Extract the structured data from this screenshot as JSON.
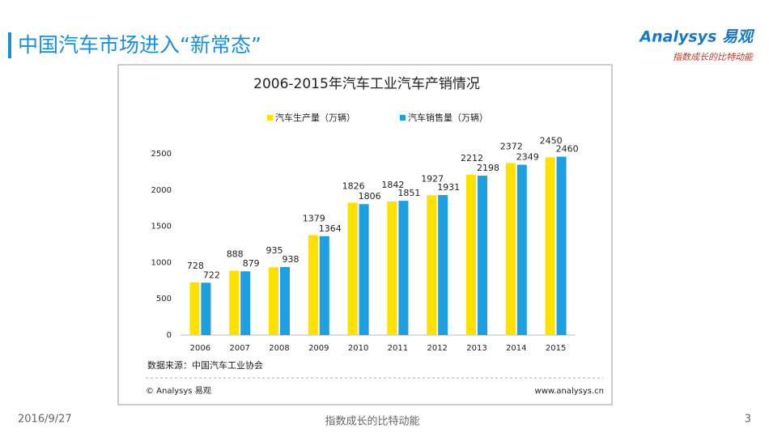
{
  "header": {
    "title": "中国汽车市场进入“新常态”",
    "logo": "Analysys 易观",
    "slogan": "指数成长的比特动能"
  },
  "chart_data": {
    "type": "bar",
    "title": "2006-2015年汽车工业汽车产销情况",
    "categories": [
      "2006",
      "2007",
      "2008",
      "2009",
      "2010",
      "2011",
      "2012",
      "2013",
      "2014",
      "2015"
    ],
    "series": [
      {
        "name": "汽车生产量（万辆）",
        "color": "#ffe100",
        "values": [
          728,
          888,
          935,
          1379,
          1826,
          1842,
          1927,
          2212,
          2372,
          2450
        ]
      },
      {
        "name": "汽车销售量（万辆）",
        "color": "#1f9fe0",
        "values": [
          722,
          879,
          938,
          1364,
          1806,
          1851,
          1931,
          2198,
          2349,
          2460
        ]
      }
    ],
    "ylim": [
      0,
      2500
    ],
    "yticks": [
      0,
      500,
      1000,
      1500,
      2000,
      2500
    ],
    "grid": false,
    "source": "数据来源：中国汽车工业协会",
    "copyright": "© Analysys 易观",
    "website": "www.analysys.cn"
  },
  "footer": {
    "date": "2016/9/27",
    "slogan": "指数成长的比特动能",
    "page": "3"
  }
}
